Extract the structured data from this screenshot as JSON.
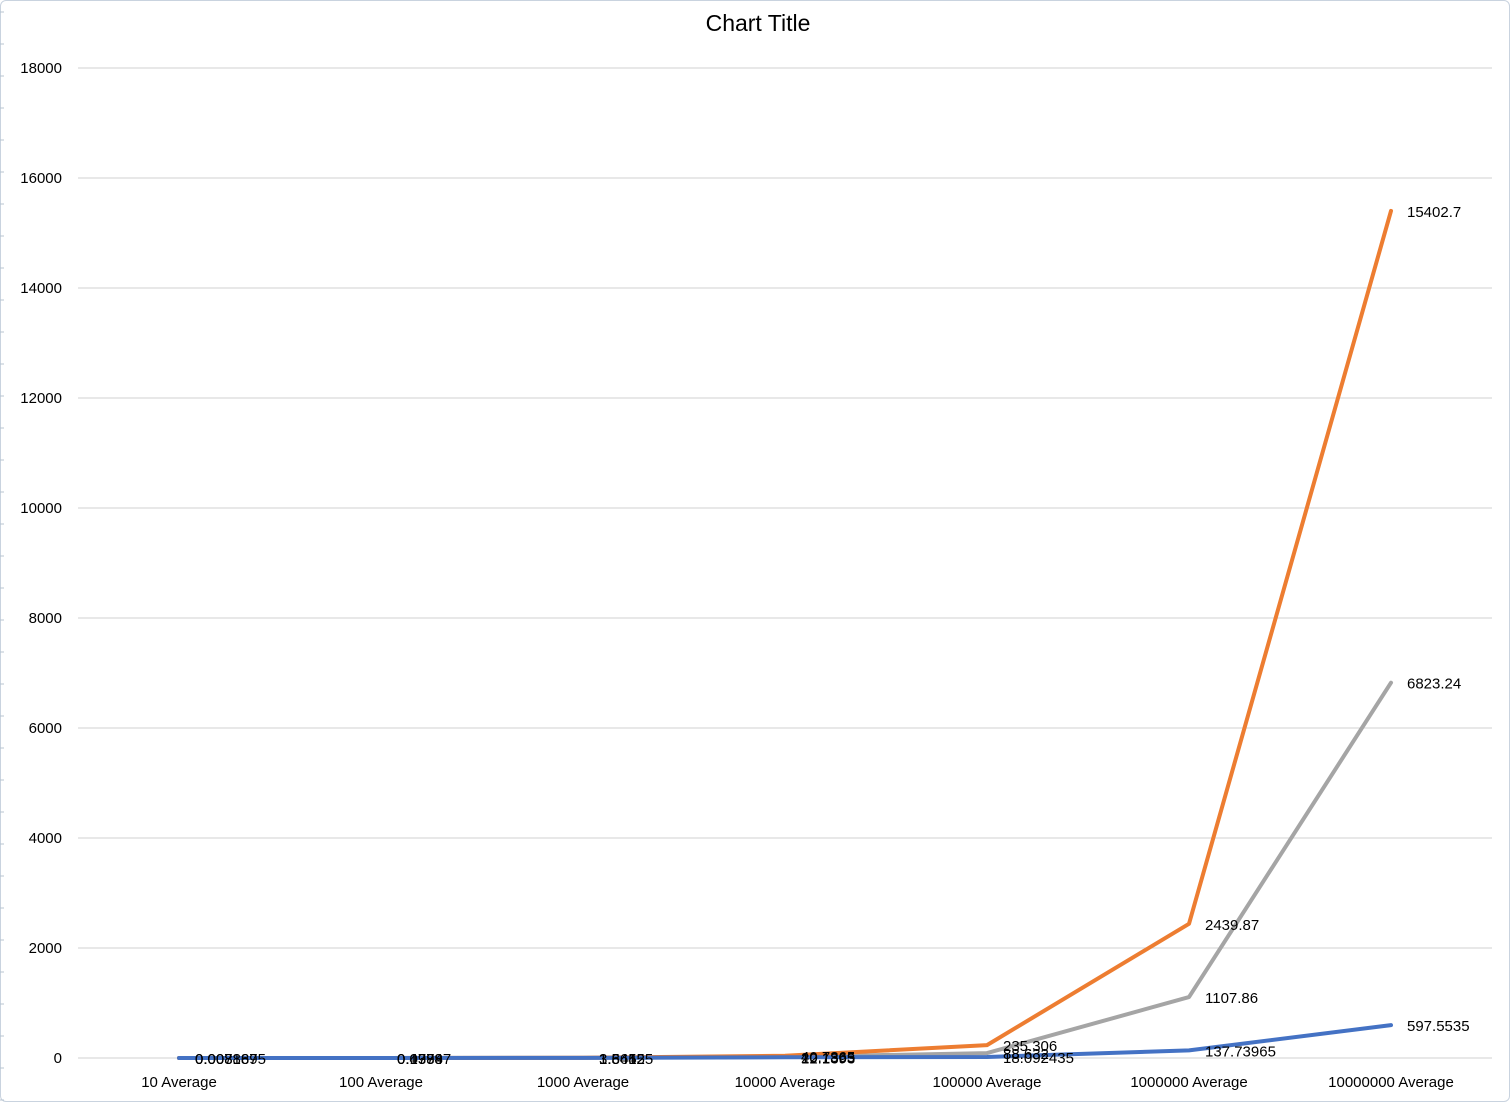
{
  "chart_data": {
    "type": "line",
    "title": "Chart Title",
    "xlabel": "",
    "ylabel": "",
    "categories": [
      "10 Average",
      "100 Average",
      "1000 Average",
      "10000 Average",
      "100000 Average",
      "1000000 Average",
      "10000000 Average"
    ],
    "ylim": [
      0,
      18000
    ],
    "yticks": [
      "0",
      "2000",
      "4000",
      "6000",
      "8000",
      "10000",
      "12000",
      "14000",
      "16000",
      "18000"
    ],
    "grid": true,
    "legend": "none",
    "series": [
      {
        "color": "#4472c4",
        "values": [
          0.008,
          0.0998,
          1.5412,
          12.1393,
          18.092435,
          137.73965,
          597.5535
        ],
        "labels": [
          "0.008",
          "0.0998",
          "1.5412",
          "12.1393",
          "18.092435",
          "137.73965",
          "597.5535"
        ]
      },
      {
        "color": "#ed7d31",
        "values": [
          0.008167,
          0.47897,
          3.66425,
          40.7365,
          235.306,
          2439.87,
          15402.7
        ],
        "labels": [
          "0.008167",
          "0.47897",
          "3.66425",
          "40.7365",
          "235.306",
          "2439.87",
          "15402.7"
        ]
      },
      {
        "color": "#a5a5a5",
        "values": [
          0.0078895,
          0.1374,
          1.8455,
          20.1865,
          88.632,
          1107.86,
          6823.24
        ],
        "labels": [
          "0.0078895",
          "0.1374",
          "1.8455",
          "20.1865",
          "88.632",
          "1107.86",
          "6823.24"
        ]
      }
    ]
  }
}
